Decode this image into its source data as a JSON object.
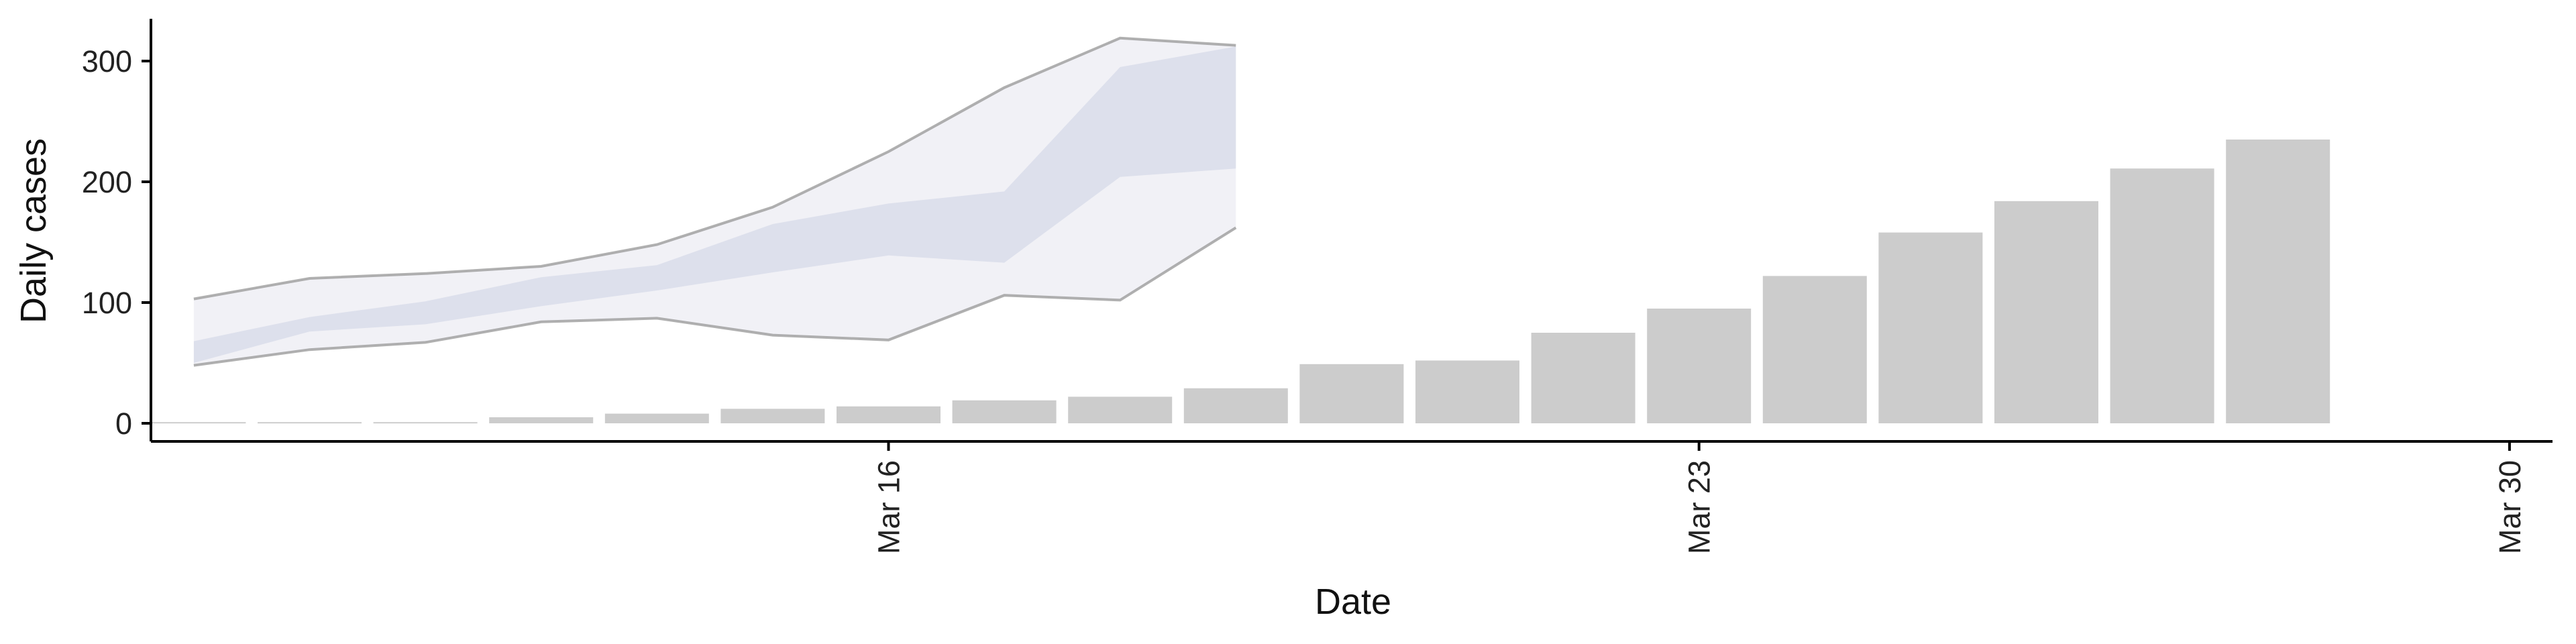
{
  "chart_data": {
    "type": "bar",
    "xlabel": "Date",
    "ylabel": "Daily cases",
    "ylim": [
      -15,
      335
    ],
    "x_ticks": [
      "Mar 16",
      "Mar 23",
      "Mar 30"
    ],
    "y_ticks": [
      0,
      100,
      200,
      300
    ],
    "grid": false,
    "legend": "none",
    "colors": {
      "bars": "#cccccc",
      "axis": "#000000",
      "band_outer_fill": "#eeeff5",
      "band_inner_fill": "#d6d9e8",
      "band_outer_line": "#9c9c9c"
    },
    "bars": {
      "dates": [
        "Mar 10",
        "Mar 11",
        "Mar 12",
        "Mar 13",
        "Mar 14",
        "Mar 15",
        "Mar 16",
        "Mar 17",
        "Mar 18",
        "Mar 19",
        "Mar 20",
        "Mar 21",
        "Mar 22",
        "Mar 23",
        "Mar 24",
        "Mar 25",
        "Mar 26",
        "Mar 27",
        "Mar 28",
        "Mar 29"
      ],
      "values": [
        1,
        1,
        1,
        5,
        8,
        12,
        14,
        19,
        22,
        29,
        49,
        52,
        75,
        95,
        122,
        158,
        184,
        211,
        235,
        0
      ]
    },
    "forecast_band": {
      "dates": [
        "Mar 10",
        "Mar 11",
        "Mar 12",
        "Mar 13",
        "Mar 14",
        "Mar 15",
        "Mar 16",
        "Mar 17",
        "Mar 18",
        "Mar 19"
      ],
      "outer_lower": [
        48,
        61,
        67,
        84,
        87,
        73,
        69,
        106,
        102,
        162
      ],
      "outer_upper": [
        103,
        120,
        124,
        130,
        148,
        179,
        225,
        278,
        319,
        313
      ],
      "inner_lower": [
        50,
        76,
        82,
        97,
        110,
        125,
        139,
        133,
        204,
        211
      ],
      "inner_upper": [
        68,
        88,
        101,
        121,
        131,
        165,
        182,
        192,
        295,
        312
      ]
    }
  }
}
